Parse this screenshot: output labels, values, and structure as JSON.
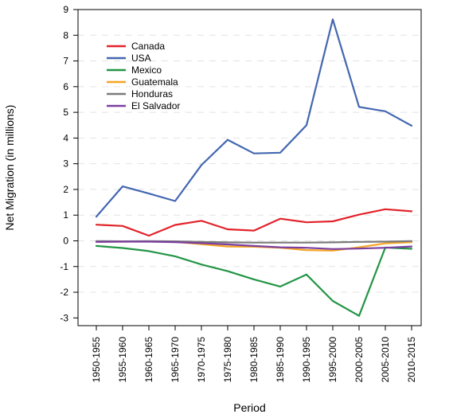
{
  "chart_data": {
    "type": "line",
    "title": "",
    "xlabel": "Period",
    "ylabel": "Net Migration (in millions)",
    "categories": [
      "1950-1955",
      "1955-1960",
      "1960-1965",
      "1965-1970",
      "1970-1975",
      "1975-1980",
      "1980-1985",
      "1985-1990",
      "1990-1995",
      "1995-2000",
      "2000-2005",
      "2005-2010",
      "2010-2015"
    ],
    "ylim": [
      -3.3,
      9
    ],
    "yticks": [
      -3,
      -2,
      -1,
      0,
      1,
      2,
      3,
      4,
      5,
      6,
      7,
      8,
      9
    ],
    "ytick_labels": [
      "-3",
      "-2",
      "-1",
      "0",
      "1",
      "2",
      "3",
      "4",
      "5",
      "6",
      "7",
      "8",
      "9"
    ],
    "grid": "horizontal dashed",
    "legend_position": "top-left",
    "series": [
      {
        "name": "Canada",
        "color": "#e2232a",
        "values": [
          0.63,
          0.58,
          0.2,
          0.62,
          0.78,
          0.45,
          0.4,
          0.86,
          0.72,
          0.76,
          1.02,
          1.23,
          1.15
        ]
      },
      {
        "name": "USA",
        "color": "#4367b0",
        "values": [
          0.94,
          2.12,
          1.84,
          1.55,
          2.95,
          3.93,
          3.4,
          3.43,
          4.5,
          8.62,
          5.21,
          5.04,
          4.48
        ]
      },
      {
        "name": "Mexico",
        "color": "#239545",
        "values": [
          -0.2,
          -0.28,
          -0.4,
          -0.6,
          -0.92,
          -1.18,
          -1.5,
          -1.78,
          -1.31,
          -2.34,
          -2.92,
          -0.26,
          -0.31
        ]
      },
      {
        "name": "Guatemala",
        "color": "#f6a623",
        "values": [
          -0.03,
          -0.03,
          -0.02,
          -0.04,
          -0.13,
          -0.22,
          -0.23,
          -0.27,
          -0.36,
          -0.38,
          -0.25,
          -0.1,
          -0.05
        ]
      },
      {
        "name": "Honduras",
        "color": "#7a7a7a",
        "values": [
          -0.01,
          -0.02,
          -0.01,
          -0.02,
          -0.04,
          -0.06,
          -0.07,
          -0.07,
          -0.07,
          -0.06,
          -0.04,
          -0.03,
          -0.01
        ]
      },
      {
        "name": "El Salvador",
        "color": "#7b3fa0",
        "values": [
          -0.04,
          -0.03,
          -0.03,
          -0.05,
          -0.09,
          -0.14,
          -0.2,
          -0.25,
          -0.27,
          -0.32,
          -0.3,
          -0.27,
          -0.22
        ]
      }
    ]
  }
}
